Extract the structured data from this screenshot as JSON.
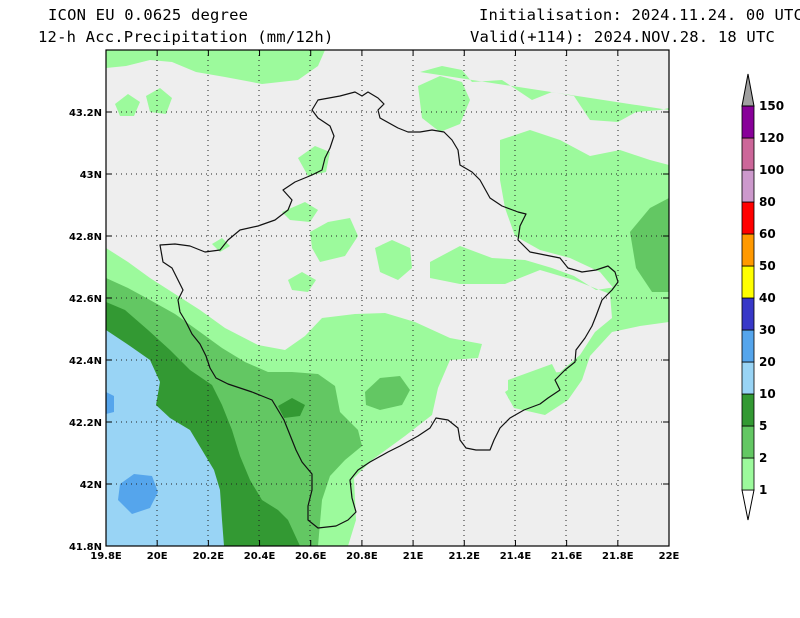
{
  "header": {
    "model": "ICON EU 0.0625 degree",
    "parameter": "12-h Acc.Precipitation (mm/12h)",
    "initialisation": "Initialisation: 2024.11.24. 00 UTC",
    "valid": "Valid(+114): 2024.NOV.28. 18 UTC"
  },
  "map": {
    "lon_range": [
      19.8,
      22.0
    ],
    "lat_range": [
      41.8,
      43.4
    ],
    "lon_ticks": [
      "19.8E",
      "20E",
      "20.2E",
      "20.4E",
      "20.6E",
      "20.8E",
      "21E",
      "21.2E",
      "21.4E",
      "21.6E",
      "21.8E",
      "22E"
    ],
    "lat_ticks": [
      "41.8N",
      "42N",
      "42.2N",
      "42.4N",
      "42.6N",
      "42.8N",
      "43N",
      "43.2N"
    ],
    "gridlines": "dotted",
    "background_color": "#eeeeee",
    "border_color": "#111111"
  },
  "colorbar": {
    "labels": [
      "1",
      "2",
      "5",
      "10",
      "20",
      "30",
      "40",
      "50",
      "60",
      "80",
      "100",
      "120",
      "150"
    ],
    "colors": [
      "#ffffff",
      "#9cfa9c",
      "#63c763",
      "#339933",
      "#99d4f5",
      "#55a5ec",
      "#3838c8",
      "#ffff00",
      "#ff9900",
      "#ff0000",
      "#cc99cc",
      "#cc6699",
      "#880099",
      "#a0a0a0"
    ],
    "arrows": "both"
  }
}
